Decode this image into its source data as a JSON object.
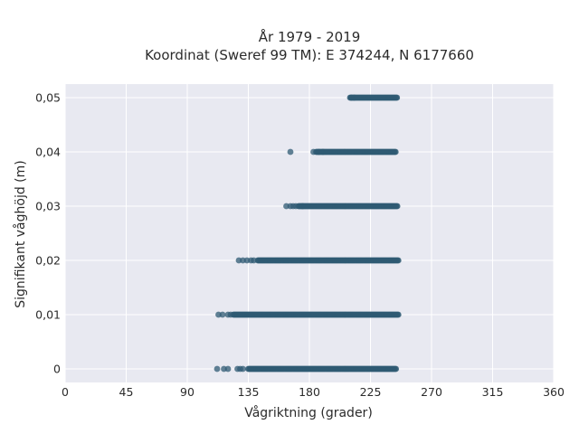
{
  "chart_data": {
    "type": "scatter",
    "title_line1": "År 1979 - 2019",
    "title_line2": "Koordinat (Sweref 99 TM): E 374244, N 6177660",
    "xlabel": "Vågriktning (grader)",
    "ylabel": "Signifikant våghöjd (m)",
    "xlim": [
      0,
      360
    ],
    "ylim": [
      -0.0025,
      0.0525
    ],
    "xticks": [
      0,
      45,
      90,
      135,
      180,
      225,
      270,
      315,
      360
    ],
    "xtick_labels": [
      "0",
      "45",
      "90",
      "135",
      "180",
      "225",
      "270",
      "315",
      "360"
    ],
    "yticks": [
      0,
      0.01,
      0.02,
      0.03,
      0.04,
      0.05
    ],
    "ytick_labels": [
      "0",
      "0,01",
      "0,02",
      "0,03",
      "0,04",
      "0,05"
    ],
    "grid": true,
    "point_color": "#2f5a73",
    "background_color": "#e8e9f1",
    "points": [
      {
        "y": 0.05,
        "x_min": 210,
        "x_max": 245,
        "stray_x": [
          211,
          213
        ]
      },
      {
        "y": 0.04,
        "x_min": 185,
        "x_max": 244,
        "stray_x": [
          166,
          183,
          187,
          190
        ]
      },
      {
        "y": 0.03,
        "x_min": 172,
        "x_max": 245,
        "stray_x": [
          163,
          166,
          168,
          170,
          175
        ]
      },
      {
        "y": 0.02,
        "x_min": 142,
        "x_max": 246,
        "stray_x": [
          128,
          131,
          134,
          137,
          139
        ]
      },
      {
        "y": 0.01,
        "x_min": 124,
        "x_max": 246,
        "stray_x": [
          113,
          116,
          120,
          122
        ]
      },
      {
        "y": 0.0,
        "x_min": 135,
        "x_max": 244,
        "stray_x": [
          112,
          117,
          120,
          127,
          129,
          131
        ]
      }
    ]
  }
}
